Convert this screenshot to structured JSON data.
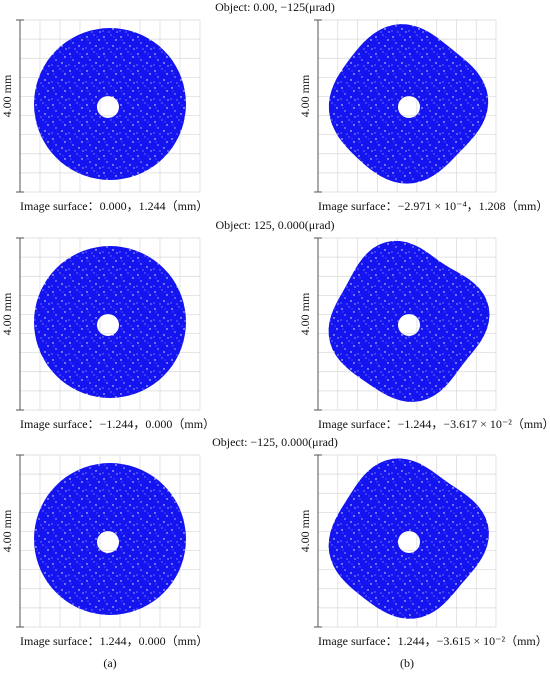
{
  "rows": [
    {
      "object": "Object: 0.00, −125(μrad)",
      "panels": [
        {
          "y_label": "4.00 mm",
          "caption": "Image surface：0.000，1.244（mm）"
        },
        {
          "y_label": "4.00 mm",
          "caption": "Image surface：−2.971 × 10⁻⁴，1.208（mm）"
        }
      ]
    },
    {
      "object": "Object: 125, 0.000(μrad)",
      "panels": [
        {
          "y_label": "4.00 mm",
          "caption": "Image surface：−1.244，0.000（mm）"
        },
        {
          "y_label": "4.00 mm",
          "caption": "Image surface：−1.244，−3.617 × 10⁻²（mm）"
        }
      ]
    },
    {
      "object": "Object: −125, 0.000(μrad)",
      "panels": [
        {
          "y_label": "4.00 mm",
          "caption": "Image surface：1.244，0.000（mm）"
        },
        {
          "y_label": "4.00 mm",
          "caption": "Image surface：1.244，−3.615 × 10⁻²（mm）"
        }
      ]
    }
  ],
  "columns": [
    "(a)",
    "(b)"
  ]
}
